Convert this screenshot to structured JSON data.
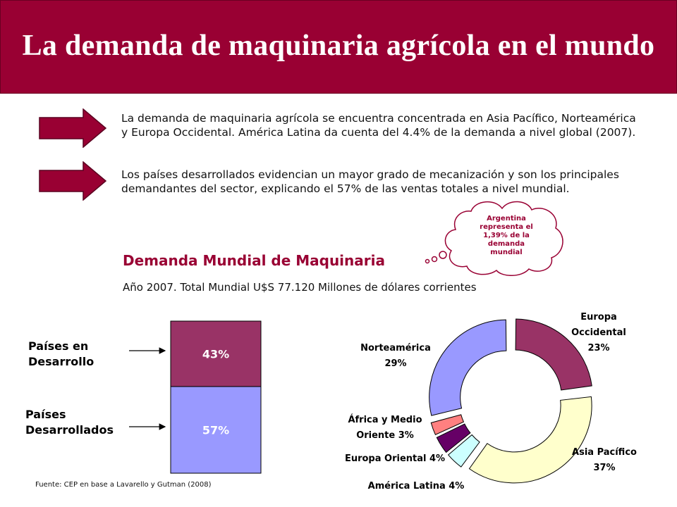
{
  "header": {
    "title": "La demanda de maquinaria agrícola en el mundo"
  },
  "bullets": [
    {
      "text": "La demanda de maquinaria agrícola se encuentra concentrada en Asia Pacífico, Norteamérica y Europa Occidental. América Latina da cuenta del 4.4% de la demanda a nivel global (2007)."
    },
    {
      "text": "Los países desarrollados evidencian un mayor grado de mecanización y son los principales demandantes del sector, explicando el 57% de las ventas totales a nivel mundial."
    }
  ],
  "callout": {
    "text": "Argentina representa el  1,39% de la demanda mundial"
  },
  "source": "Fuente: CEP en base a Lavarello y Gutman (2008)",
  "colors": {
    "banner": "#990033",
    "arrow": "#990033",
    "title_accent": "#990033",
    "europa_occidental": "#993366",
    "asia_pacifico": "#FFFFCC",
    "america_latina": "#CCFFFF",
    "europa_oriental": "#660066",
    "africa_medio_oriente": "#FF8080",
    "norteamerica": "#9999FF"
  },
  "chart_data": [
    {
      "type": "bar",
      "stacked": true,
      "title": "Demanda Mundial de Maquinaria",
      "subtitle": "Año 2007. Total Mundial U$S 77.120 Millones de dólares corrientes",
      "series": [
        {
          "name": "Países Desarrollados",
          "value": 57,
          "label": "57%",
          "color": "#9999FF",
          "axis_label": "Países Desarrollados"
        },
        {
          "name": "Países en Desarrollo",
          "value": 43,
          "label": "43%",
          "color": "#993366",
          "axis_label": "Países en Desarrollo"
        }
      ]
    },
    {
      "type": "pie",
      "variant": "donut",
      "exploded": true,
      "slices": [
        {
          "name": "Europa Occidental",
          "value": 23,
          "label": "Europa Occidental 23%",
          "label_lines": [
            "Europa",
            "Occidental",
            "23%"
          ],
          "color": "#993366"
        },
        {
          "name": "Asia Pacífico",
          "value": 37,
          "label": "Asia Pacífico 37%",
          "label_lines": [
            "Asia Pacífico",
            "37%"
          ],
          "color": "#FFFFCC"
        },
        {
          "name": "América Latina",
          "value": 4,
          "label": "América Latina 4%",
          "label_lines": [
            "América Latina 4%"
          ],
          "color": "#CCFFFF"
        },
        {
          "name": "Europa Oriental",
          "value": 4,
          "label": "Europa Oriental 4%",
          "label_lines": [
            "Europa Oriental 4%"
          ],
          "color": "#660066"
        },
        {
          "name": "África y Medio Oriente",
          "value": 3,
          "label": "África y Medio Oriente 3%",
          "label_lines": [
            "África y Medio",
            "Oriente 3%"
          ],
          "color": "#FF8080"
        },
        {
          "name": "Norteamérica",
          "value": 29,
          "label": "Norteamérica 29%",
          "label_lines": [
            "Norteamérica",
            "29%"
          ],
          "color": "#9999FF"
        }
      ]
    }
  ]
}
